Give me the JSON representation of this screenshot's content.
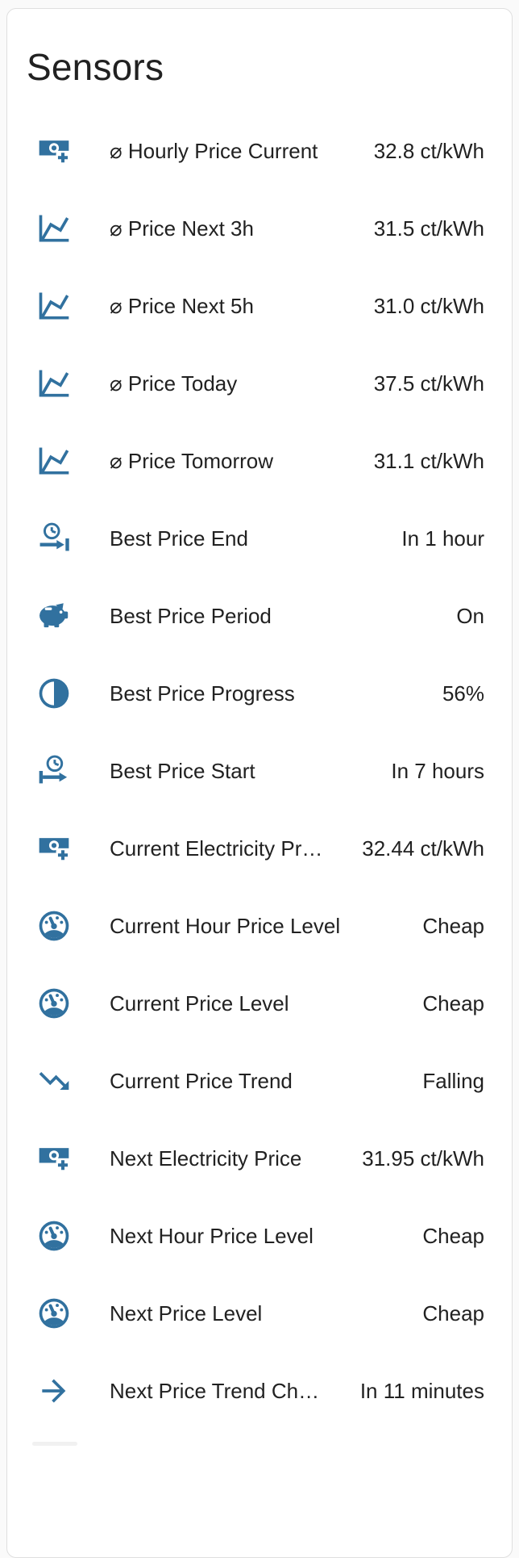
{
  "card": {
    "title": "Sensors"
  },
  "colors": {
    "icon": "#31719f",
    "text": "#212121",
    "card_background": "#ffffff",
    "page_background": "#fafafa",
    "card_border": "#dfdfdf"
  },
  "sensors": [
    {
      "icon": "cash-plus",
      "name": "⌀ Hourly Price Current",
      "value": "32.8 ct/kWh"
    },
    {
      "icon": "chart-line",
      "name": "⌀ Price Next 3h",
      "value": "31.5 ct/kWh"
    },
    {
      "icon": "chart-line",
      "name": "⌀ Price Next 5h",
      "value": "31.0 ct/kWh"
    },
    {
      "icon": "chart-line",
      "name": "⌀ Price Today",
      "value": "37.5 ct/kWh"
    },
    {
      "icon": "chart-line",
      "name": "⌀ Price Tomorrow",
      "value": "31.1 ct/kWh"
    },
    {
      "icon": "clock-end",
      "name": "Best Price End",
      "value": "In 1 hour"
    },
    {
      "icon": "piggy-bank",
      "name": "Best Price Period",
      "value": "On"
    },
    {
      "icon": "circle-half-full",
      "name": "Best Price Progress",
      "value": "56%"
    },
    {
      "icon": "clock-start",
      "name": "Best Price Start",
      "value": "In 7 hours"
    },
    {
      "icon": "cash-plus",
      "name": "Current Electricity Pr…",
      "value": "32.44 ct/kWh"
    },
    {
      "icon": "gauge",
      "name": "Current Hour Price Level",
      "value": "Cheap"
    },
    {
      "icon": "gauge",
      "name": "Current Price Level",
      "value": "Cheap"
    },
    {
      "icon": "trending-down",
      "name": "Current Price Trend",
      "value": "Falling"
    },
    {
      "icon": "cash-plus",
      "name": "Next Electricity Price",
      "value": "31.95 ct/kWh"
    },
    {
      "icon": "gauge",
      "name": "Next Hour Price Level",
      "value": "Cheap"
    },
    {
      "icon": "gauge",
      "name": "Next Price Level",
      "value": "Cheap"
    },
    {
      "icon": "arrow-right",
      "name": "Next Price Trend Ch…",
      "value": "In 11 minutes"
    }
  ]
}
